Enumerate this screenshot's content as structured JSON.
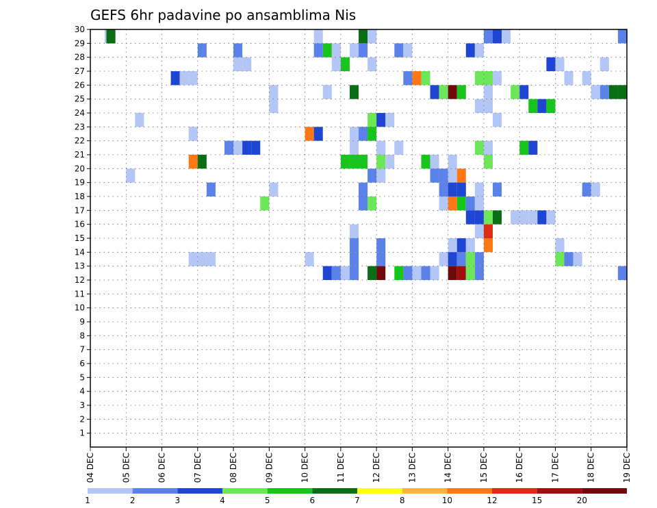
{
  "chart_data": {
    "type": "heatmap",
    "title": "GEFS 6hr padavine po ansamblima Nis",
    "x_ticks": [
      "04 DEC",
      "05 DEC",
      "06 DEC",
      "07 DEC",
      "08 DEC",
      "09 DEC",
      "10 DEC",
      "11 DEC",
      "12 DEC",
      "13 DEC",
      "14 DEC",
      "15 DEC",
      "16 DEC",
      "17 DEC",
      "18 DEC",
      "19 DEC"
    ],
    "y_ticks": [
      "1",
      "2",
      "3",
      "4",
      "5",
      "6",
      "7",
      "8",
      "9",
      "10",
      "11",
      "12",
      "13",
      "14",
      "15",
      "16",
      "17",
      "18",
      "19",
      "20",
      "21",
      "22",
      "23",
      "24",
      "25",
      "26",
      "27",
      "28",
      "29",
      "30"
    ],
    "ylim": [
      0,
      30
    ],
    "grid": true,
    "legend": {
      "placement": "bottom",
      "labels": [
        "1",
        "2",
        "3",
        "4",
        "5",
        "6",
        "7",
        "8",
        "10",
        "12",
        "15",
        "20"
      ],
      "colors": [
        "#b4c6f5",
        "#5a82e8",
        "#1f46d2",
        "#6ee65a",
        "#19c41c",
        "#0a6e14",
        "#ffff1a",
        "#ffb440",
        "#ff7814",
        "#dc2d14",
        "#a00e0e",
        "#6e0a0a"
      ]
    },
    "cells": [
      {
        "day": 0.4,
        "ens": 30,
        "v": 1
      },
      {
        "day": 0.45,
        "ens": 30,
        "v": 6
      },
      {
        "day": 0.45,
        "ens": 30,
        "v": 6
      },
      {
        "day": 6.25,
        "ens": 30,
        "v": 1
      },
      {
        "day": 7.5,
        "ens": 30,
        "v": 6
      },
      {
        "day": 7.75,
        "ens": 30,
        "v": 1
      },
      {
        "day": 11.0,
        "ens": 30,
        "v": 2
      },
      {
        "day": 11.25,
        "ens": 30,
        "v": 3
      },
      {
        "day": 11.5,
        "ens": 30,
        "v": 1
      },
      {
        "day": 14.75,
        "ens": 30,
        "v": 2
      },
      {
        "day": 3.0,
        "ens": 29,
        "v": 2
      },
      {
        "day": 4.0,
        "ens": 29,
        "v": 2
      },
      {
        "day": 6.25,
        "ens": 29,
        "v": 2
      },
      {
        "day": 6.5,
        "ens": 29,
        "v": 5
      },
      {
        "day": 6.75,
        "ens": 29,
        "v": 1
      },
      {
        "day": 7.25,
        "ens": 29,
        "v": 1
      },
      {
        "day": 7.5,
        "ens": 29,
        "v": 2
      },
      {
        "day": 8.5,
        "ens": 29,
        "v": 2
      },
      {
        "day": 8.75,
        "ens": 29,
        "v": 1
      },
      {
        "day": 10.5,
        "ens": 29,
        "v": 3
      },
      {
        "day": 10.75,
        "ens": 29,
        "v": 1
      },
      {
        "day": 4.0,
        "ens": 28,
        "v": 1
      },
      {
        "day": 4.25,
        "ens": 28,
        "v": 1
      },
      {
        "day": 6.75,
        "ens": 28,
        "v": 1
      },
      {
        "day": 7.0,
        "ens": 28,
        "v": 5
      },
      {
        "day": 7.75,
        "ens": 28,
        "v": 1
      },
      {
        "day": 12.75,
        "ens": 28,
        "v": 3
      },
      {
        "day": 13.0,
        "ens": 28,
        "v": 1
      },
      {
        "day": 14.25,
        "ens": 28,
        "v": 1
      },
      {
        "day": 2.25,
        "ens": 27,
        "v": 3
      },
      {
        "day": 2.5,
        "ens": 27,
        "v": 1
      },
      {
        "day": 2.75,
        "ens": 27,
        "v": 1
      },
      {
        "day": 8.75,
        "ens": 27,
        "v": 2
      },
      {
        "day": 9.0,
        "ens": 27,
        "v": 10
      },
      {
        "day": 9.25,
        "ens": 27,
        "v": 4
      },
      {
        "day": 10.75,
        "ens": 27,
        "v": 4
      },
      {
        "day": 11.0,
        "ens": 27,
        "v": 4
      },
      {
        "day": 11.25,
        "ens": 27,
        "v": 1
      },
      {
        "day": 13.25,
        "ens": 27,
        "v": 1
      },
      {
        "day": 13.75,
        "ens": 27,
        "v": 1
      },
      {
        "day": 5.0,
        "ens": 26,
        "v": 1
      },
      {
        "day": 6.5,
        "ens": 26,
        "v": 1
      },
      {
        "day": 7.25,
        "ens": 26,
        "v": 6
      },
      {
        "day": 9.5,
        "ens": 26,
        "v": 3
      },
      {
        "day": 9.75,
        "ens": 26,
        "v": 4
      },
      {
        "day": 10.0,
        "ens": 26,
        "v": 20
      },
      {
        "day": 10.25,
        "ens": 26,
        "v": 5
      },
      {
        "day": 11.0,
        "ens": 26,
        "v": 1
      },
      {
        "day": 11.75,
        "ens": 26,
        "v": 4
      },
      {
        "day": 12.0,
        "ens": 26,
        "v": 3
      },
      {
        "day": 14.0,
        "ens": 26,
        "v": 1
      },
      {
        "day": 14.25,
        "ens": 26,
        "v": 2
      },
      {
        "day": 14.5,
        "ens": 26,
        "v": 6
      },
      {
        "day": 14.75,
        "ens": 26,
        "v": 6
      },
      {
        "day": 5.0,
        "ens": 25,
        "v": 1
      },
      {
        "day": 10.75,
        "ens": 25,
        "v": 1
      },
      {
        "day": 11.0,
        "ens": 25,
        "v": 1
      },
      {
        "day": 12.25,
        "ens": 25,
        "v": 5
      },
      {
        "day": 12.5,
        "ens": 25,
        "v": 3
      },
      {
        "day": 12.75,
        "ens": 25,
        "v": 5
      },
      {
        "day": 1.25,
        "ens": 24,
        "v": 1
      },
      {
        "day": 7.75,
        "ens": 24,
        "v": 4
      },
      {
        "day": 8.0,
        "ens": 24,
        "v": 3
      },
      {
        "day": 8.25,
        "ens": 24,
        "v": 1
      },
      {
        "day": 11.25,
        "ens": 24,
        "v": 1
      },
      {
        "day": 2.75,
        "ens": 23,
        "v": 1
      },
      {
        "day": 6.0,
        "ens": 23,
        "v": 10
      },
      {
        "day": 6.25,
        "ens": 23,
        "v": 3
      },
      {
        "day": 7.25,
        "ens": 23,
        "v": 1
      },
      {
        "day": 7.5,
        "ens": 23,
        "v": 2
      },
      {
        "day": 7.75,
        "ens": 23,
        "v": 5
      },
      {
        "day": 3.75,
        "ens": 22,
        "v": 2
      },
      {
        "day": 4.0,
        "ens": 22,
        "v": 1
      },
      {
        "day": 4.25,
        "ens": 22,
        "v": 3
      },
      {
        "day": 4.5,
        "ens": 22,
        "v": 3
      },
      {
        "day": 7.25,
        "ens": 22,
        "v": 1
      },
      {
        "day": 8.0,
        "ens": 22,
        "v": 1
      },
      {
        "day": 8.5,
        "ens": 22,
        "v": 1
      },
      {
        "day": 10.75,
        "ens": 22,
        "v": 4
      },
      {
        "day": 11.0,
        "ens": 22,
        "v": 1
      },
      {
        "day": 12.0,
        "ens": 22,
        "v": 5
      },
      {
        "day": 12.25,
        "ens": 22,
        "v": 3
      },
      {
        "day": 2.75,
        "ens": 21,
        "v": 10
      },
      {
        "day": 3.0,
        "ens": 21,
        "v": 6
      },
      {
        "day": 7.0,
        "ens": 21,
        "v": 5
      },
      {
        "day": 7.25,
        "ens": 21,
        "v": 5
      },
      {
        "day": 7.5,
        "ens": 21,
        "v": 5
      },
      {
        "day": 8.0,
        "ens": 21,
        "v": 4
      },
      {
        "day": 8.25,
        "ens": 21,
        "v": 1
      },
      {
        "day": 9.25,
        "ens": 21,
        "v": 5
      },
      {
        "day": 9.5,
        "ens": 21,
        "v": 1
      },
      {
        "day": 10.0,
        "ens": 21,
        "v": 1
      },
      {
        "day": 11.0,
        "ens": 21,
        "v": 4
      },
      {
        "day": 1.0,
        "ens": 20,
        "v": 1
      },
      {
        "day": 7.75,
        "ens": 20,
        "v": 2
      },
      {
        "day": 8.0,
        "ens": 20,
        "v": 1
      },
      {
        "day": 9.5,
        "ens": 20,
        "v": 2
      },
      {
        "day": 9.75,
        "ens": 20,
        "v": 2
      },
      {
        "day": 10.0,
        "ens": 20,
        "v": 1
      },
      {
        "day": 10.25,
        "ens": 20,
        "v": 10
      },
      {
        "day": 3.25,
        "ens": 19,
        "v": 2
      },
      {
        "day": 5.0,
        "ens": 19,
        "v": 1
      },
      {
        "day": 7.5,
        "ens": 19,
        "v": 2
      },
      {
        "day": 9.75,
        "ens": 19,
        "v": 2
      },
      {
        "day": 10.0,
        "ens": 19,
        "v": 3
      },
      {
        "day": 10.25,
        "ens": 19,
        "v": 3
      },
      {
        "day": 10.75,
        "ens": 19,
        "v": 1
      },
      {
        "day": 11.25,
        "ens": 19,
        "v": 2
      },
      {
        "day": 13.75,
        "ens": 19,
        "v": 2
      },
      {
        "day": 14.0,
        "ens": 19,
        "v": 1
      },
      {
        "day": 4.75,
        "ens": 18,
        "v": 4
      },
      {
        "day": 7.5,
        "ens": 18,
        "v": 2
      },
      {
        "day": 7.75,
        "ens": 18,
        "v": 4
      },
      {
        "day": 9.75,
        "ens": 18,
        "v": 1
      },
      {
        "day": 10.0,
        "ens": 18,
        "v": 10
      },
      {
        "day": 10.25,
        "ens": 18,
        "v": 5
      },
      {
        "day": 10.5,
        "ens": 18,
        "v": 2
      },
      {
        "day": 10.75,
        "ens": 18,
        "v": 1
      },
      {
        "day": 10.5,
        "ens": 17,
        "v": 3
      },
      {
        "day": 10.75,
        "ens": 17,
        "v": 3
      },
      {
        "day": 11.0,
        "ens": 17,
        "v": 4
      },
      {
        "day": 11.25,
        "ens": 17,
        "v": 6
      },
      {
        "day": 11.75,
        "ens": 17,
        "v": 1
      },
      {
        "day": 12.0,
        "ens": 17,
        "v": 1
      },
      {
        "day": 12.25,
        "ens": 17,
        "v": 1
      },
      {
        "day": 12.5,
        "ens": 17,
        "v": 3
      },
      {
        "day": 12.75,
        "ens": 17,
        "v": 1
      },
      {
        "day": 7.25,
        "ens": 16,
        "v": 1
      },
      {
        "day": 10.75,
        "ens": 16,
        "v": 1
      },
      {
        "day": 11.0,
        "ens": 16,
        "v": 12
      },
      {
        "day": 7.25,
        "ens": 15,
        "v": 2
      },
      {
        "day": 8.0,
        "ens": 15,
        "v": 2
      },
      {
        "day": 10.0,
        "ens": 15,
        "v": 1
      },
      {
        "day": 10.25,
        "ens": 15,
        "v": 3
      },
      {
        "day": 10.5,
        "ens": 15,
        "v": 1
      },
      {
        "day": 11.0,
        "ens": 15,
        "v": 10
      },
      {
        "day": 13.0,
        "ens": 15,
        "v": 1
      },
      {
        "day": 2.75,
        "ens": 14,
        "v": 1
      },
      {
        "day": 3.0,
        "ens": 14,
        "v": 1
      },
      {
        "day": 3.25,
        "ens": 14,
        "v": 1
      },
      {
        "day": 6.0,
        "ens": 14,
        "v": 1
      },
      {
        "day": 7.25,
        "ens": 14,
        "v": 2
      },
      {
        "day": 8.0,
        "ens": 14,
        "v": 2
      },
      {
        "day": 9.75,
        "ens": 14,
        "v": 1
      },
      {
        "day": 10.0,
        "ens": 14,
        "v": 3
      },
      {
        "day": 10.25,
        "ens": 14,
        "v": 2
      },
      {
        "day": 10.5,
        "ens": 14,
        "v": 4
      },
      {
        "day": 10.75,
        "ens": 14,
        "v": 2
      },
      {
        "day": 13.0,
        "ens": 14,
        "v": 4
      },
      {
        "day": 13.25,
        "ens": 14,
        "v": 2
      },
      {
        "day": 13.5,
        "ens": 14,
        "v": 1
      },
      {
        "day": 6.5,
        "ens": 13,
        "v": 3
      },
      {
        "day": 6.75,
        "ens": 13,
        "v": 2
      },
      {
        "day": 7.0,
        "ens": 13,
        "v": 1
      },
      {
        "day": 7.25,
        "ens": 13,
        "v": 2
      },
      {
        "day": 7.75,
        "ens": 13,
        "v": 6
      },
      {
        "day": 8.0,
        "ens": 13,
        "v": 20
      },
      {
        "day": 8.5,
        "ens": 13,
        "v": 5
      },
      {
        "day": 8.75,
        "ens": 13,
        "v": 2
      },
      {
        "day": 9.0,
        "ens": 13,
        "v": 1
      },
      {
        "day": 9.25,
        "ens": 13,
        "v": 2
      },
      {
        "day": 9.5,
        "ens": 13,
        "v": 1
      },
      {
        "day": 10.0,
        "ens": 13,
        "v": 20
      },
      {
        "day": 10.25,
        "ens": 13,
        "v": 15
      },
      {
        "day": 10.5,
        "ens": 13,
        "v": 4
      },
      {
        "day": 10.75,
        "ens": 13,
        "v": 2
      },
      {
        "day": 14.75,
        "ens": 13,
        "v": 2
      }
    ]
  }
}
